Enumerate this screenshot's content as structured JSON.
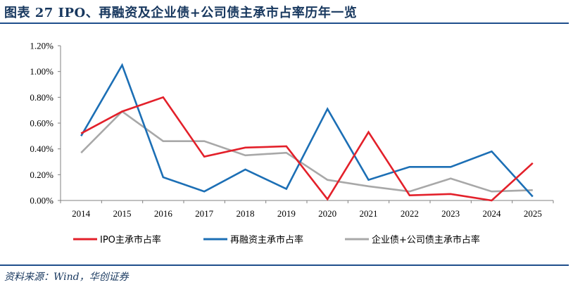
{
  "header": {
    "title": "图表 27   IPO、再融资及企业债+公司债主承市占率历年一览"
  },
  "footer": {
    "source": "资料来源：Wind，华创证券"
  },
  "colors": {
    "accent": "#1F4E8C",
    "title": "#17375E"
  },
  "chart_data": {
    "type": "line",
    "title": "",
    "xlabel": "",
    "ylabel": "",
    "x": [
      "2014",
      "2015",
      "2016",
      "2017",
      "2018",
      "2019",
      "2020",
      "2021",
      "2022",
      "2023",
      "2024",
      "2025"
    ],
    "y_ticks": [
      "0.00%",
      "0.20%",
      "0.40%",
      "0.60%",
      "0.80%",
      "1.00%",
      "1.20%"
    ],
    "ylim": [
      0,
      1.2
    ],
    "grid": false,
    "legend": "bottom",
    "series": [
      {
        "name": "IPO主承市占率",
        "color": "#E3202A",
        "values": [
          0.52,
          0.69,
          0.8,
          0.34,
          0.41,
          0.42,
          0.01,
          0.53,
          0.04,
          0.05,
          0.0,
          0.29
        ]
      },
      {
        "name": "再融资主承市占率",
        "color": "#1C6FB5",
        "values": [
          0.5,
          1.05,
          0.18,
          0.07,
          0.24,
          0.09,
          0.71,
          0.16,
          0.26,
          0.26,
          0.38,
          0.03
        ]
      },
      {
        "name": "企业债+公司债主承市占率",
        "color": "#A8A8A8",
        "values": [
          0.37,
          0.69,
          0.46,
          0.46,
          0.35,
          0.37,
          0.16,
          0.11,
          0.07,
          0.17,
          0.07,
          0.08
        ]
      }
    ]
  }
}
